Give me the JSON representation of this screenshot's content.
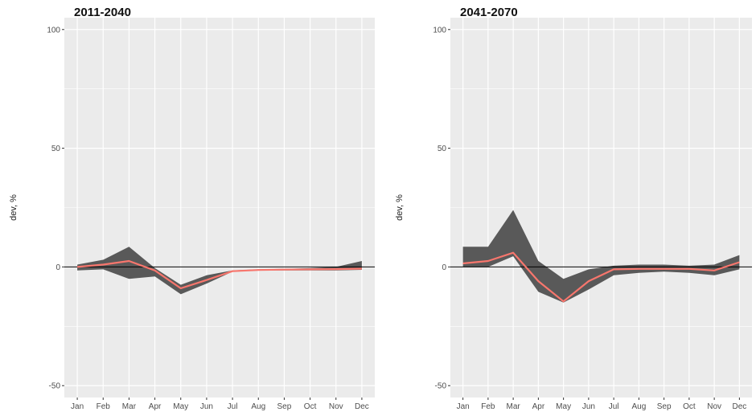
{
  "chart_data": [
    {
      "type": "area",
      "title": "2011-2040",
      "xlabel": "",
      "ylabel": "dev, %",
      "ylim": [
        -55,
        105
      ],
      "yticks": [
        -50,
        0,
        50,
        100
      ],
      "categories": [
        "Jan",
        "Feb",
        "Mar",
        "Apr",
        "May",
        "Jun",
        "Jul",
        "Aug",
        "Sep",
        "Oct",
        "Nov",
        "Dec"
      ],
      "grid": true,
      "hline": 0,
      "band": {
        "lower": [
          -1.5,
          -1,
          -5,
          -4,
          -11.5,
          -7,
          -2,
          -1.5,
          -1.5,
          -1.5,
          -1.5,
          -1.2
        ],
        "upper": [
          1,
          3,
          8.5,
          -0.5,
          -7.5,
          -3.5,
          -1.5,
          -1,
          -0.8,
          -0.5,
          0,
          2.5
        ]
      },
      "series": [
        {
          "values": [
            0,
            1,
            2.5,
            -1.5,
            -9,
            -5.5,
            -1.8,
            -1.3,
            -1.1,
            -1,
            -0.9,
            -0.7
          ]
        }
      ],
      "colors": {
        "band": "#595959",
        "line": "#f8766d",
        "panel": "#ebebeb",
        "grid": "#ffffff"
      }
    },
    {
      "type": "area",
      "title": "2041-2070",
      "xlabel": "",
      "ylabel": "dev, %",
      "ylim": [
        -55,
        105
      ],
      "yticks": [
        -50,
        0,
        50,
        100
      ],
      "categories": [
        "Jan",
        "Feb",
        "Mar",
        "Apr",
        "May",
        "Jun",
        "Jul",
        "Aug",
        "Sep",
        "Oct",
        "Nov",
        "Dec"
      ],
      "grid": true,
      "hline": 0,
      "band": {
        "lower": [
          0,
          0,
          4.5,
          -10.5,
          -15,
          -9.5,
          -3.5,
          -2.5,
          -2,
          -2.5,
          -3.5,
          -1
        ],
        "upper": [
          8.5,
          8.5,
          24,
          2.5,
          -5,
          -1,
          0.5,
          1,
          1,
          0.5,
          1,
          5
        ]
      },
      "series": [
        {
          "values": [
            1.5,
            2.5,
            6,
            -6,
            -14.5,
            -6,
            -1,
            -0.8,
            -0.8,
            -0.8,
            -1.5,
            2
          ]
        }
      ],
      "colors": {
        "band": "#595959",
        "line": "#f8766d",
        "panel": "#ebebeb",
        "grid": "#ffffff"
      }
    }
  ]
}
